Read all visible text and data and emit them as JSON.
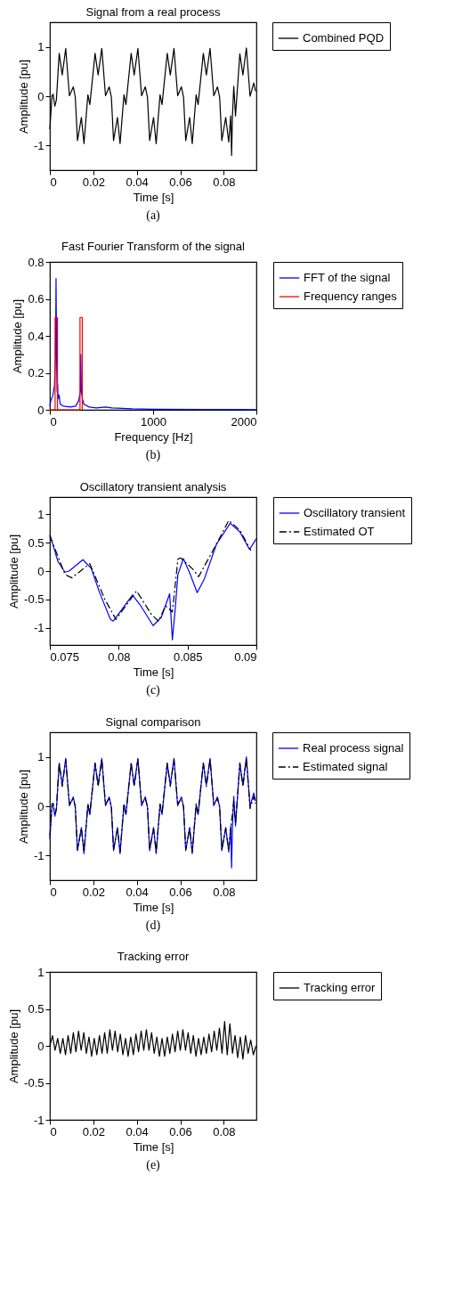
{
  "chart_data": [
    {
      "type": "line",
      "title": "Signal from a real process",
      "xlabel": "Time [s]",
      "ylabel": "Amplitude [pu]",
      "xlim": [
        0,
        0.095
      ],
      "xticks": [
        0,
        0.02,
        0.04,
        0.06,
        0.08
      ],
      "ylim": [
        -1.5,
        1.5
      ],
      "yticks": [
        -1,
        0,
        1
      ],
      "grid": false,
      "legend": "right",
      "line_style": "solid",
      "annotations": [
        "(a)"
      ],
      "series": [
        {
          "name": "Combined PQD",
          "color": "#000000",
          "x": [
            0,
            0.001,
            0.0015,
            0.0023,
            0.003,
            0.0043,
            0.0057,
            0.0073,
            0.009,
            0.0108,
            0.0117,
            0.0127,
            0.0145,
            0.0157,
            0.0175,
            0.0184,
            0.0208,
            0.0222,
            0.0239,
            0.0256,
            0.0273,
            0.0283,
            0.0293,
            0.0311,
            0.0323,
            0.0341,
            0.035,
            0.0374,
            0.0388,
            0.0405,
            0.0422,
            0.0439,
            0.0449,
            0.0459,
            0.0477,
            0.0489,
            0.0507,
            0.0516,
            0.054,
            0.0554,
            0.0571,
            0.0588,
            0.0605,
            0.0615,
            0.0625,
            0.0643,
            0.0655,
            0.0673,
            0.0682,
            0.0706,
            0.072,
            0.0737,
            0.0754,
            0.0771,
            0.0781,
            0.0791,
            0.0809,
            0.0823,
            0.0832,
            0.0836,
            0.084,
            0.0846,
            0.0854,
            0.0874,
            0.0888,
            0.0904,
            0.0921,
            0.0938,
            0.0946
          ],
          "values": [
            -0.67,
            0.01,
            0.04,
            -0.2,
            -0.08,
            0.87,
            0.43,
            0.97,
            0.01,
            0.19,
            -0.02,
            -0.9,
            -0.43,
            -0.96,
            0.03,
            -0.17,
            0.87,
            0.43,
            0.97,
            0.01,
            0.19,
            -0.02,
            -0.9,
            -0.43,
            -0.96,
            0.03,
            -0.17,
            0.87,
            0.43,
            0.97,
            0.01,
            0.19,
            -0.02,
            -0.9,
            -0.43,
            -0.96,
            0.03,
            -0.17,
            0.87,
            0.43,
            0.97,
            0.01,
            0.19,
            -0.02,
            -0.9,
            -0.43,
            -0.96,
            0.03,
            -0.17,
            0.87,
            0.43,
            0.97,
            0.01,
            0.19,
            -0.02,
            -0.9,
            -0.43,
            -0.93,
            -0.4,
            -1.2,
            -0.4,
            0.2,
            -0.4,
            0.86,
            0.43,
            0.98,
            0.0,
            0.27,
            0.1
          ]
        }
      ]
    },
    {
      "type": "line",
      "title": "Fast Fourier Transform of the signal",
      "xlabel": "Frequency [Hz]",
      "ylabel": "Amplitude [pu]",
      "xlim": [
        0,
        2000
      ],
      "xticks": [
        0,
        1000,
        2000
      ],
      "ylim": [
        0,
        0.8
      ],
      "yticks": [
        0,
        0.2,
        0.4,
        0.6,
        0.8
      ],
      "grid": false,
      "legend": "right",
      "line_style": "solid",
      "annotations": [
        "(b)"
      ],
      "series": [
        {
          "name": "FFT of the signal",
          "color": "#0000ff",
          "x": [
            0,
            10,
            30,
            45,
            55,
            60,
            65,
            70,
            75,
            80,
            90,
            100,
            130,
            200,
            250,
            280,
            295,
            300,
            305,
            315,
            330,
            380,
            450,
            540,
            600,
            800,
            1000,
            1500,
            2000
          ],
          "values": [
            0.02,
            0.05,
            0.08,
            0.13,
            0.3,
            0.71,
            0.3,
            0.1,
            0.14,
            0.06,
            0.08,
            0.03,
            0.02,
            0.015,
            0.02,
            0.05,
            0.1,
            0.3,
            0.1,
            0.06,
            0.03,
            0.015,
            0.01,
            0.015,
            0.01,
            0.005,
            0.003,
            0.002,
            0.001
          ]
        },
        {
          "name": "Frequency ranges",
          "color": "#ff0000",
          "x": [
            0,
            51,
            51,
            74,
            74,
            292,
            292,
            314,
            314
          ],
          "values": [
            0,
            0,
            0.5,
            0.5,
            0,
            0,
            0.5,
            0.5,
            0
          ]
        }
      ]
    },
    {
      "type": "line",
      "title": "Oscillatory transient analysis",
      "xlabel": "Time [s]",
      "ylabel": "Amplitude [pu]",
      "xlim": [
        0.075,
        0.09
      ],
      "xticks": [
        0.075,
        0.08,
        0.085,
        0.09
      ],
      "ylim": [
        -1.3,
        1.3
      ],
      "yticks": [
        -1,
        -0.5,
        0,
        0.5,
        1
      ],
      "grid": false,
      "legend": "right",
      "annotations": [
        "(c)"
      ],
      "series": [
        {
          "name": "Oscillatory transient",
          "color": "#0000ff",
          "line_style": "solid",
          "x": [
            0.075,
            0.0756,
            0.0761,
            0.0764,
            0.0774,
            0.078,
            0.0786,
            0.0794,
            0.0796,
            0.0801,
            0.081,
            0.0816,
            0.0825,
            0.0831,
            0.0837,
            0.0839,
            0.0841,
            0.0843,
            0.0847,
            0.0852,
            0.0857,
            0.0862,
            0.0871,
            0.0881,
            0.0888,
            0.0895,
            0.09
          ],
          "values": [
            0.64,
            0.16,
            -0.02,
            0.0,
            0.2,
            0.05,
            -0.37,
            -0.85,
            -0.88,
            -0.72,
            -0.42,
            -0.61,
            -0.96,
            -0.81,
            -0.4,
            -1.21,
            -0.68,
            -0.06,
            0.22,
            -0.06,
            -0.38,
            -0.15,
            0.47,
            0.84,
            0.69,
            0.38,
            0.57
          ]
        },
        {
          "name": "Estimated OT",
          "color": "#000000",
          "line_style": "dashed",
          "x": [
            0.075,
            0.0761,
            0.0766,
            0.0779,
            0.079,
            0.0798,
            0.0813,
            0.0824,
            0.0829,
            0.0834,
            0.0839,
            0.0843,
            0.0845,
            0.0854,
            0.0858,
            0.0868,
            0.088,
            0.0888,
            0.0896
          ],
          "values": [
            0.62,
            -0.06,
            -0.12,
            0.13,
            -0.5,
            -0.85,
            -0.35,
            -0.77,
            -0.88,
            -0.61,
            -0.72,
            0.21,
            0.23,
            0.03,
            -0.1,
            0.34,
            0.89,
            0.72,
            0.36
          ]
        }
      ]
    },
    {
      "type": "line",
      "title": "Signal comparison",
      "xlabel": "Time [s]",
      "ylabel": "Amplitude [pu]",
      "xlim": [
        0,
        0.095
      ],
      "xticks": [
        0,
        0.02,
        0.04,
        0.06,
        0.08
      ],
      "ylim": [
        -1.5,
        1.5
      ],
      "yticks": [
        -1,
        0,
        1
      ],
      "grid": false,
      "legend": "right",
      "annotations": [
        "(d)"
      ],
      "series": [
        {
          "name": "Real process signal",
          "color": "#0000ff",
          "line_style": "solid",
          "x": [
            0,
            0.001,
            0.0015,
            0.0023,
            0.003,
            0.0043,
            0.0057,
            0.0073,
            0.009,
            0.0108,
            0.0117,
            0.0127,
            0.0145,
            0.0157,
            0.0175,
            0.0184,
            0.0208,
            0.0222,
            0.0239,
            0.0256,
            0.0273,
            0.0283,
            0.0293,
            0.0311,
            0.0323,
            0.0341,
            0.035,
            0.0374,
            0.0388,
            0.0405,
            0.0422,
            0.0439,
            0.0449,
            0.0459,
            0.0477,
            0.0489,
            0.0507,
            0.0516,
            0.054,
            0.0554,
            0.0571,
            0.0588,
            0.0605,
            0.0615,
            0.0625,
            0.0643,
            0.0655,
            0.0673,
            0.0682,
            0.0706,
            0.072,
            0.0737,
            0.0754,
            0.0771,
            0.0781,
            0.0791,
            0.0809,
            0.0823,
            0.0832,
            0.0836,
            0.084,
            0.0846,
            0.0854,
            0.0874,
            0.0888,
            0.0904,
            0.0921,
            0.0938,
            0.0946
          ],
          "values": [
            -0.67,
            0.01,
            0.04,
            -0.2,
            -0.08,
            0.87,
            0.43,
            0.97,
            0.01,
            0.19,
            -0.02,
            -0.9,
            -0.43,
            -0.96,
            0.03,
            -0.17,
            0.87,
            0.43,
            0.97,
            0.01,
            0.19,
            -0.02,
            -0.9,
            -0.43,
            -0.96,
            0.03,
            -0.17,
            0.87,
            0.43,
            0.97,
            0.01,
            0.19,
            -0.02,
            -0.9,
            -0.43,
            -0.96,
            0.03,
            -0.17,
            0.87,
            0.43,
            0.97,
            0.01,
            0.19,
            -0.02,
            -0.9,
            -0.43,
            -0.96,
            0.03,
            -0.17,
            0.87,
            0.43,
            0.97,
            0.01,
            0.19,
            -0.02,
            -0.9,
            -0.43,
            -0.93,
            -0.4,
            -1.25,
            -0.4,
            0.2,
            -0.4,
            0.86,
            0.43,
            1.0,
            0.0,
            0.27,
            0.1
          ]
        },
        {
          "name": "Estimated signal",
          "color": "#000000",
          "line_style": "dashed",
          "x": [
            0,
            0.001,
            0.0015,
            0.0023,
            0.003,
            0.0043,
            0.0057,
            0.0073,
            0.009,
            0.0108,
            0.0117,
            0.0127,
            0.0145,
            0.0157,
            0.0175,
            0.0184,
            0.0208,
            0.0222,
            0.0239,
            0.0256,
            0.0273,
            0.0283,
            0.0293,
            0.0311,
            0.0323,
            0.0341,
            0.035,
            0.0374,
            0.0388,
            0.0405,
            0.0422,
            0.0439,
            0.0449,
            0.0459,
            0.0477,
            0.0489,
            0.0507,
            0.0516,
            0.054,
            0.0554,
            0.0571,
            0.0588,
            0.0605,
            0.0615,
            0.0625,
            0.0643,
            0.0655,
            0.0673,
            0.0682,
            0.0706,
            0.072,
            0.0737,
            0.0754,
            0.0771,
            0.0781,
            0.0791,
            0.0809,
            0.0823,
            0.0832,
            0.0846,
            0.0854,
            0.0874,
            0.0888,
            0.0904,
            0.0921,
            0.0938,
            0.0946
          ],
          "values": [
            -0.6,
            0.05,
            0.06,
            -0.15,
            -0.05,
            0.88,
            0.4,
            0.95,
            0.05,
            0.15,
            0.0,
            -0.88,
            -0.45,
            -0.93,
            0.05,
            -0.15,
            0.88,
            0.4,
            0.95,
            0.05,
            0.15,
            0.0,
            -0.88,
            -0.45,
            -0.93,
            0.05,
            -0.15,
            0.88,
            0.4,
            0.95,
            0.05,
            0.15,
            0.0,
            -0.88,
            -0.45,
            -0.93,
            0.05,
            -0.15,
            0.88,
            0.4,
            0.95,
            0.05,
            0.15,
            0.0,
            -0.88,
            -0.45,
            -0.93,
            0.05,
            -0.15,
            0.88,
            0.4,
            0.95,
            0.05,
            0.15,
            0.0,
            -0.88,
            -0.45,
            -0.9,
            -0.45,
            0.1,
            -0.35,
            0.88,
            0.4,
            0.96,
            -0.05,
            0.2,
            0.05
          ]
        }
      ]
    },
    {
      "type": "line",
      "title": "Tracking error",
      "xlabel": "Time [s]",
      "ylabel": "Amplitude [pu]",
      "xlim": [
        0,
        0.095
      ],
      "xticks": [
        0,
        0.02,
        0.04,
        0.06,
        0.08
      ],
      "ylim": [
        -1,
        1
      ],
      "yticks": [
        -1,
        -0.5,
        0,
        0.5,
        1
      ],
      "grid": false,
      "legend": "right",
      "line_style": "solid",
      "annotations": [
        "(e)"
      ],
      "series": [
        {
          "name": "Tracking error",
          "color": "#000000",
          "x": [
            0,
            0.0012,
            0.0024,
            0.0036,
            0.0048,
            0.006,
            0.0072,
            0.0084,
            0.0096,
            0.0108,
            0.012,
            0.0132,
            0.0144,
            0.0156,
            0.0168,
            0.018,
            0.0192,
            0.0204,
            0.0216,
            0.0228,
            0.024,
            0.0252,
            0.0264,
            0.0276,
            0.0288,
            0.03,
            0.0312,
            0.0324,
            0.0336,
            0.0348,
            0.036,
            0.0372,
            0.0384,
            0.0396,
            0.0408,
            0.042,
            0.0432,
            0.0444,
            0.0456,
            0.0468,
            0.048,
            0.0492,
            0.0504,
            0.0516,
            0.0528,
            0.054,
            0.0552,
            0.0564,
            0.0576,
            0.0588,
            0.06,
            0.0612,
            0.0624,
            0.0636,
            0.0648,
            0.066,
            0.0672,
            0.0684,
            0.0696,
            0.0708,
            0.072,
            0.0732,
            0.0744,
            0.0756,
            0.0768,
            0.078,
            0.0792,
            0.0804,
            0.0816,
            0.0828,
            0.084,
            0.0852,
            0.0864,
            0.0876,
            0.0888,
            0.09,
            0.0912,
            0.0924,
            0.0936,
            0.0948
          ],
          "values": [
            0.0,
            0.14,
            -0.06,
            0.1,
            -0.1,
            0.1,
            -0.12,
            0.14,
            -0.1,
            0.18,
            -0.08,
            0.2,
            -0.06,
            0.18,
            -0.1,
            0.12,
            -0.14,
            0.1,
            -0.12,
            0.14,
            -0.1,
            0.18,
            -0.1,
            0.22,
            -0.06,
            0.2,
            -0.08,
            0.16,
            -0.12,
            0.1,
            -0.14,
            0.12,
            -0.12,
            0.16,
            -0.08,
            0.2,
            -0.06,
            0.22,
            -0.06,
            0.18,
            -0.1,
            0.12,
            -0.14,
            0.1,
            -0.14,
            0.12,
            -0.1,
            0.16,
            -0.08,
            0.2,
            -0.06,
            0.22,
            -0.06,
            0.18,
            -0.1,
            0.14,
            -0.14,
            0.1,
            -0.12,
            0.12,
            -0.1,
            0.16,
            -0.08,
            0.2,
            -0.06,
            0.24,
            -0.1,
            0.33,
            -0.12,
            0.3,
            -0.1,
            0.14,
            -0.16,
            0.12,
            -0.18,
            0.14,
            -0.1,
            0.08,
            -0.12,
            0.0
          ]
        }
      ]
    }
  ]
}
